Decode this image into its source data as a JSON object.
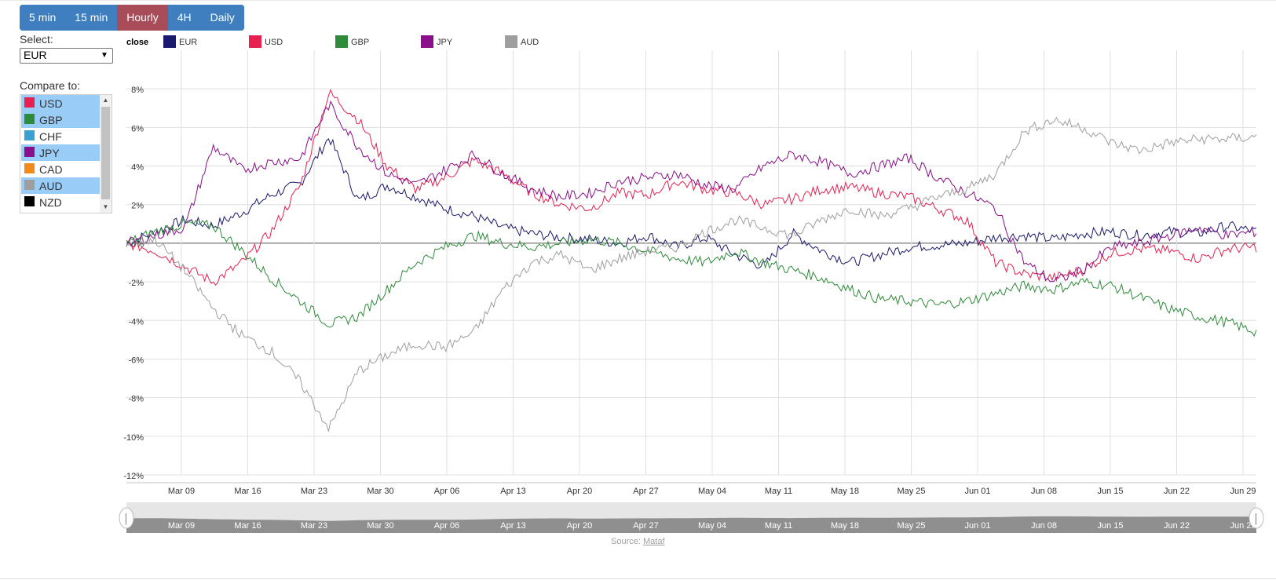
{
  "periods": [
    "5 min",
    "15 min",
    "Hourly",
    "4H",
    "Daily"
  ],
  "active_period": "Hourly",
  "select": {
    "label": "Select:",
    "value": "EUR"
  },
  "compare": {
    "label": "Compare to:",
    "items": [
      {
        "name": "USD",
        "color": "#e8204f",
        "selected": true
      },
      {
        "name": "GBP",
        "color": "#2e8b3a",
        "selected": true
      },
      {
        "name": "CHF",
        "color": "#3aa0d0",
        "selected": false
      },
      {
        "name": "JPY",
        "color": "#8a0f8a",
        "selected": true
      },
      {
        "name": "CAD",
        "color": "#f28a1a",
        "selected": false
      },
      {
        "name": "AUD",
        "color": "#9e9e9e",
        "selected": true
      },
      {
        "name": "NZD",
        "color": "#000000",
        "selected": false
      }
    ]
  },
  "navigator": {
    "handle_left": "│",
    "handle_right": "│"
  },
  "source": {
    "label": "Source:",
    "link": "Mataf"
  },
  "chart_data": {
    "type": "line",
    "legend_title": "close",
    "x_ticks": [
      "Mar 09",
      "Mar 16",
      "Mar 23",
      "Mar 30",
      "Apr 06",
      "Apr 13",
      "Apr 20",
      "Apr 27",
      "May 04",
      "May 11",
      "May 18",
      "May 25",
      "Jun 01",
      "Jun 08",
      "Jun 15",
      "Jun 22",
      "Jun 29"
    ],
    "y_ticks": [
      "8%",
      "6%",
      "4%",
      "2%",
      "0%",
      "-2%",
      "-4%",
      "-6%",
      "-8%",
      "-10%",
      "-12%"
    ],
    "ylim": [
      -12,
      10
    ],
    "grid": true,
    "legend_position": "top-left",
    "series": [
      {
        "name": "EUR",
        "color": "#1a1a6e",
        "values": [
          0,
          0.6,
          1.2,
          0.9,
          1.6,
          2.5,
          3.1,
          5.5,
          2.2,
          3.0,
          2.4,
          1.8,
          1.4,
          0.8,
          0.5,
          0.3,
          0.2,
          0.0,
          0.4,
          -0.2,
          0.3,
          -0.6,
          -1.2,
          0.5,
          -0.4,
          -1.0,
          -0.6,
          -0.2,
          -0.1,
          0.0,
          0.3,
          0.4,
          0.2,
          0.5,
          0.6,
          0.4,
          0.6,
          0.5,
          0.9,
          0.6
        ]
      },
      {
        "name": "USD",
        "color": "#e8204f",
        "values": [
          0,
          -0.4,
          -1.2,
          -2.0,
          -1.0,
          0.6,
          3.0,
          7.8,
          6.4,
          4.0,
          2.8,
          3.4,
          4.3,
          3.6,
          2.6,
          2.0,
          1.8,
          2.6,
          2.5,
          3.2,
          2.8,
          2.6,
          2.0,
          2.3,
          2.8,
          2.9,
          2.6,
          2.4,
          1.8,
          1.2,
          -1.0,
          -1.6,
          -1.8,
          -1.4,
          -0.5,
          -0.3,
          -0.4,
          -0.8,
          -0.3,
          -0.2
        ]
      },
      {
        "name": "GBP",
        "color": "#2e8b3a",
        "values": [
          0,
          0.6,
          1.0,
          0.9,
          -0.4,
          -1.8,
          -3.0,
          -4.2,
          -3.8,
          -2.4,
          -1.0,
          -0.2,
          0.4,
          0.0,
          -0.2,
          0.0,
          0.2,
          0.0,
          -0.4,
          -0.8,
          -1.0,
          -0.4,
          -1.0,
          -1.4,
          -1.8,
          -2.4,
          -2.9,
          -3.0,
          -3.2,
          -3.0,
          -2.6,
          -2.2,
          -2.4,
          -2.0,
          -2.2,
          -2.8,
          -3.4,
          -3.8,
          -4.1,
          -4.6
        ]
      },
      {
        "name": "JPY",
        "color": "#8a0f8a",
        "values": [
          0,
          0.4,
          0.8,
          5.0,
          3.8,
          4.2,
          4.4,
          7.2,
          5.0,
          3.6,
          3.0,
          3.8,
          4.6,
          3.6,
          2.8,
          2.4,
          2.6,
          3.2,
          3.4,
          3.6,
          3.0,
          2.8,
          4.0,
          4.6,
          4.2,
          3.6,
          4.0,
          4.4,
          3.4,
          2.6,
          1.8,
          -1.0,
          -2.0,
          -1.4,
          -0.2,
          0.0,
          0.4,
          0.8,
          0.4,
          0.6
        ]
      },
      {
        "name": "AUD",
        "color": "#9e9e9e",
        "values": [
          0,
          0.2,
          -1.4,
          -3.4,
          -4.8,
          -5.6,
          -7.2,
          -9.6,
          -6.6,
          -5.8,
          -5.2,
          -5.4,
          -4.6,
          -2.4,
          -1.0,
          -0.6,
          -1.4,
          -0.8,
          -0.4,
          -0.2,
          0.6,
          1.2,
          0.8,
          0.4,
          1.2,
          1.8,
          1.4,
          1.8,
          2.4,
          2.8,
          3.6,
          5.8,
          6.4,
          6.0,
          5.2,
          4.8,
          5.2,
          5.4,
          5.4,
          5.5
        ]
      }
    ]
  }
}
